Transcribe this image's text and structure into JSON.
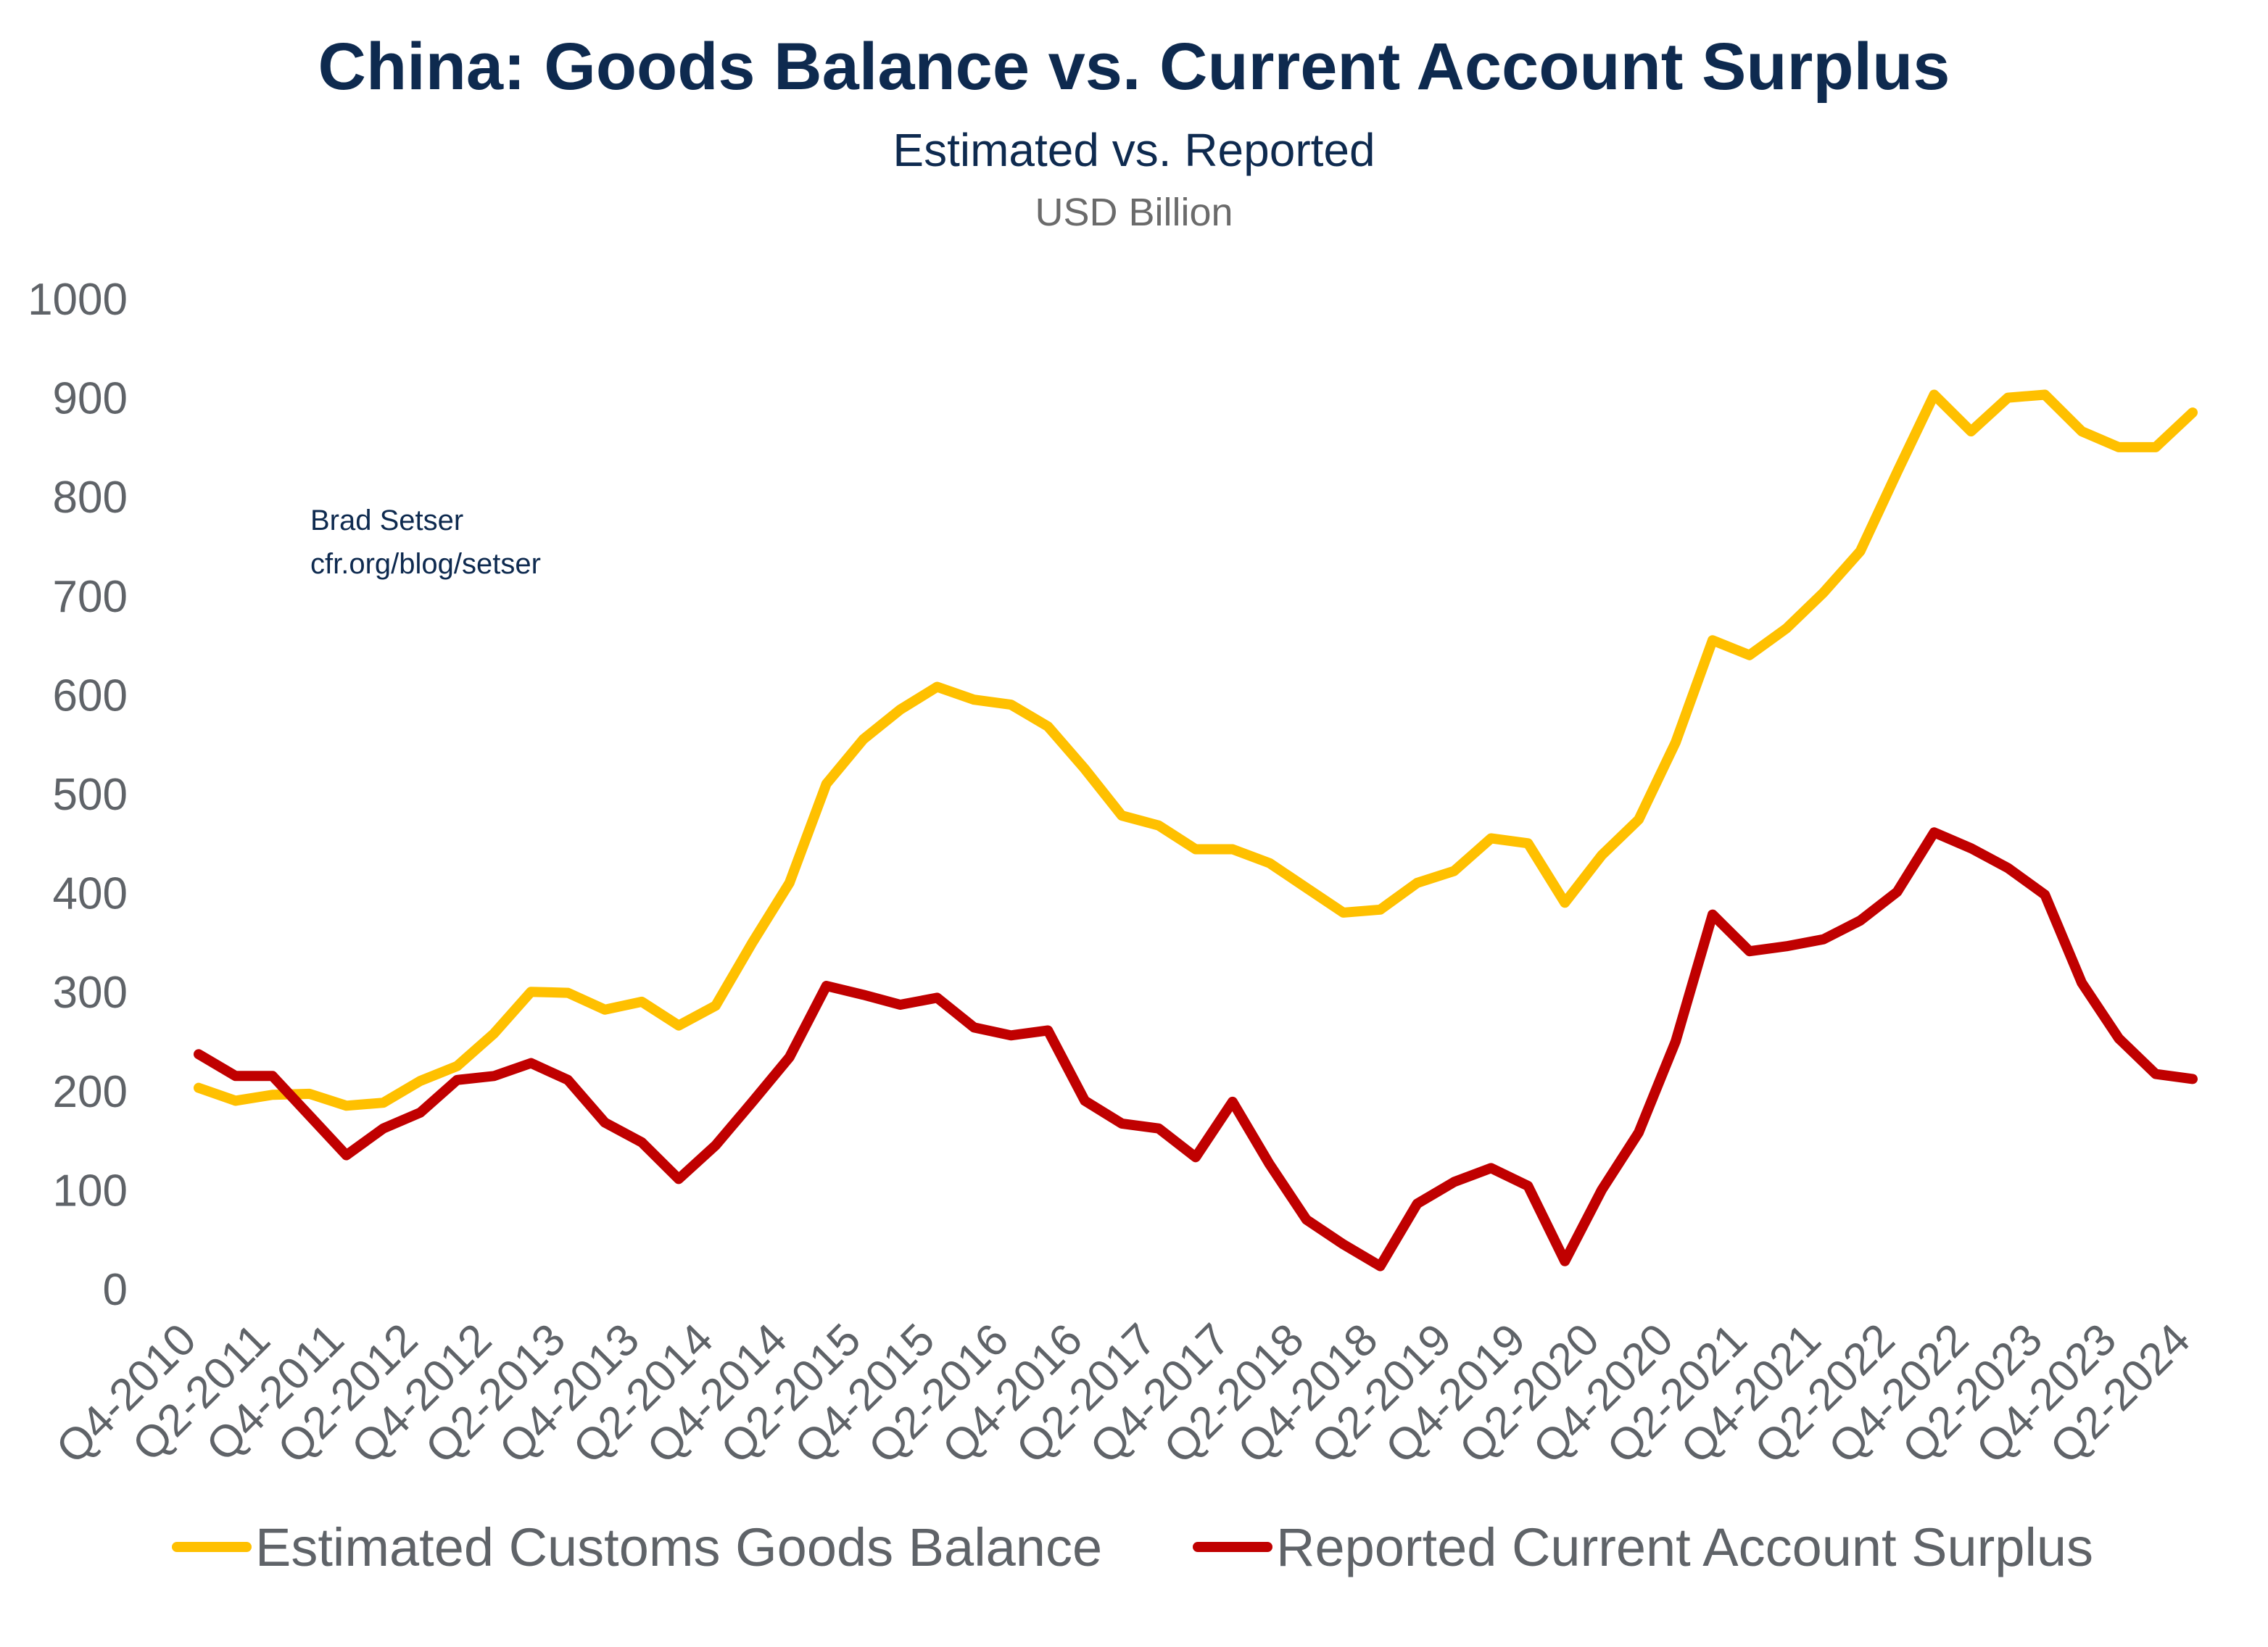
{
  "chart_data": {
    "type": "line",
    "title": "China: Goods Balance vs. Current Account Surplus",
    "subtitle": "Estimated vs. Reported",
    "ylabel": "USD Billion",
    "annotation": [
      "Brad Setser",
      "cfr.org/blog/setser"
    ],
    "ylim": [
      0,
      1000
    ],
    "yticks": [
      0,
      100,
      200,
      300,
      400,
      500,
      600,
      700,
      800,
      900,
      1000
    ],
    "grid": false,
    "legend": "bottom",
    "x": [
      "Q4-2010",
      "Q1-2011",
      "Q2-2011",
      "Q3-2011",
      "Q4-2011",
      "Q1-2012",
      "Q2-2012",
      "Q3-2012",
      "Q4-2012",
      "Q1-2013",
      "Q2-2013",
      "Q3-2013",
      "Q4-2013",
      "Q1-2014",
      "Q2-2014",
      "Q3-2014",
      "Q4-2014",
      "Q1-2015",
      "Q2-2015",
      "Q3-2015",
      "Q4-2015",
      "Q1-2016",
      "Q2-2016",
      "Q3-2016",
      "Q4-2016",
      "Q1-2017",
      "Q2-2017",
      "Q3-2017",
      "Q4-2017",
      "Q1-2018",
      "Q2-2018",
      "Q3-2018",
      "Q4-2018",
      "Q1-2019",
      "Q2-2019",
      "Q3-2019",
      "Q4-2019",
      "Q1-2020",
      "Q2-2020",
      "Q3-2020",
      "Q4-2020",
      "Q1-2021",
      "Q2-2021",
      "Q3-2021",
      "Q4-2021",
      "Q1-2022",
      "Q2-2022",
      "Q3-2022",
      "Q4-2022",
      "Q1-2023",
      "Q2-2023",
      "Q3-2023",
      "Q4-2023",
      "Q1-2024",
      "Q2-2024"
    ],
    "xtick_labels": [
      "Q4-2010",
      "Q2-2011",
      "Q4-2011",
      "Q2-2012",
      "Q4-2012",
      "Q2-2013",
      "Q4-2013",
      "Q2-2014",
      "Q4-2014",
      "Q2-2015",
      "Q4-2015",
      "Q2-2016",
      "Q4-2016",
      "Q2-2017",
      "Q4-2017",
      "Q2-2018",
      "Q4-2018",
      "Q2-2019",
      "Q4-2019",
      "Q2-2020",
      "Q4-2020",
      "Q2-2021",
      "Q4-2021",
      "Q2-2022",
      "Q4-2022",
      "Q2-2023",
      "Q4-2023",
      "Q2-2024"
    ],
    "series": [
      {
        "name": "Estimated Customs Goods Balance",
        "color": "#FFC000",
        "values": [
          203,
          190,
          196,
          197,
          185,
          188,
          210,
          225,
          258,
          300,
          299,
          282,
          290,
          266,
          286,
          350,
          410,
          510,
          555,
          585,
          608,
          595,
          590,
          568,
          525,
          478,
          468,
          444,
          444,
          430,
          405,
          380,
          383,
          410,
          422,
          455,
          450,
          390,
          438,
          474,
          552,
          655,
          640,
          667,
          703,
          745,
          825,
          903,
          866,
          900,
          903,
          866,
          850,
          850,
          885
        ]
      },
      {
        "name": "Reported Current Account Surplus",
        "color": "#C00000",
        "values": [
          237,
          215,
          215,
          175,
          135,
          162,
          178,
          211,
          215,
          228,
          211,
          168,
          148,
          111,
          145,
          189,
          234,
          306,
          297,
          287,
          294,
          264,
          256,
          261,
          190,
          167,
          162,
          133,
          189,
          126,
          70,
          45,
          23,
          86,
          108,
          122,
          104,
          28,
          100,
          158,
          250,
          378,
          341,
          346,
          353,
          372,
          401,
          461,
          445,
          425,
          398,
          309,
          253,
          217,
          212
        ]
      }
    ]
  }
}
